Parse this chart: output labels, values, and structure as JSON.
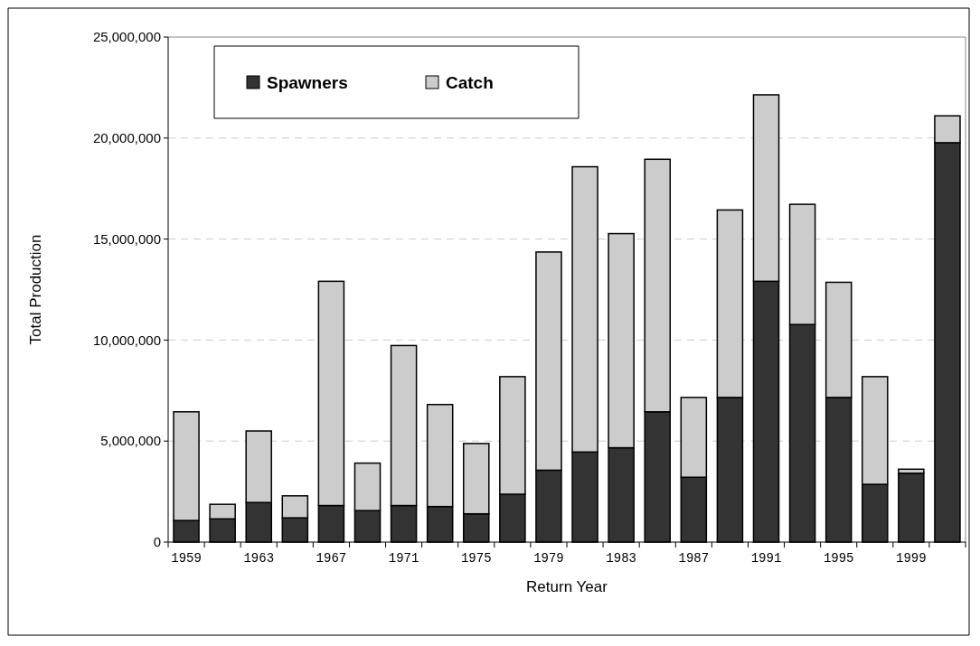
{
  "chart_data": {
    "type": "bar",
    "stacked": true,
    "xlabel": "Return Year",
    "ylabel": "Total Production",
    "categories": [
      "1959",
      null,
      "1963",
      null,
      "1967",
      null,
      "1971",
      null,
      "1975",
      null,
      "1979",
      null,
      "1983",
      null,
      "1987",
      null,
      "1991",
      null,
      "1995",
      null,
      "1999",
      null
    ],
    "series": [
      {
        "name": "Spawners",
        "color": "#333333",
        "values": [
          1070000,
          1150000,
          1960000,
          1200000,
          1810000,
          1560000,
          1810000,
          1760000,
          1400000,
          2370000,
          3560000,
          4460000,
          4670000,
          6450000,
          3210000,
          7160000,
          12910000,
          10770000,
          7160000,
          2860000,
          3410000,
          19770000
        ]
      },
      {
        "name": "Catch",
        "color": "#cccccc",
        "values": [
          5380000,
          720000,
          3540000,
          1090000,
          11100000,
          2350000,
          7920000,
          5050000,
          3480000,
          5820000,
          10800000,
          14120000,
          10600000,
          12500000,
          3950000,
          9280000,
          9230000,
          5950000,
          5700000,
          5330000,
          200000,
          1330000
        ]
      }
    ],
    "ylim": [
      0,
      25000000
    ],
    "yticks": [
      {
        "value": 0,
        "label": "0"
      },
      {
        "value": 5000000,
        "label": "5,000,000"
      },
      {
        "value": 10000000,
        "label": "10,000,000"
      },
      {
        "value": 15000000,
        "label": "15,000,000"
      },
      {
        "value": 20000000,
        "label": "20,000,000"
      },
      {
        "value": 25000000,
        "label": "25,000,000"
      }
    ],
    "grid": "y",
    "legend": "top left"
  }
}
